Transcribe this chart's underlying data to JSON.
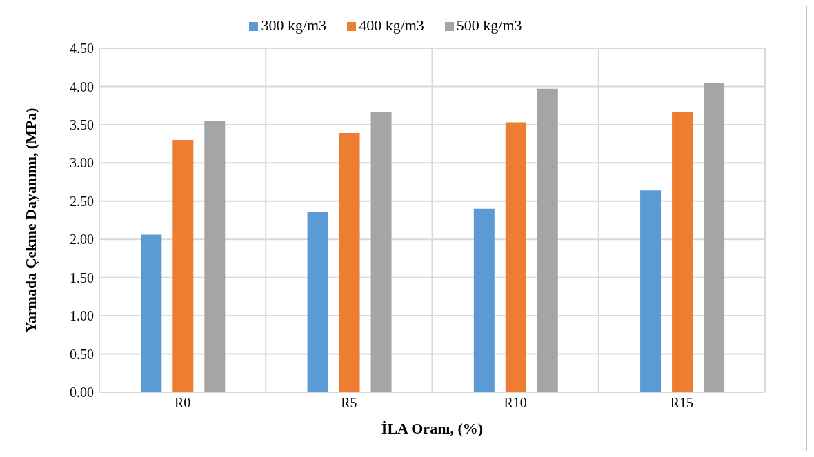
{
  "chart_data": {
    "type": "bar",
    "xlabel": "İLA Oranı, (%)",
    "ylabel": "Yarmada Çekme Dayanımı, (MPa)",
    "categories": [
      "R0",
      "R5",
      "R10",
      "R15"
    ],
    "series": [
      {
        "name": "300 kg/m3",
        "color": "#5b9bd5",
        "values": [
          2.06,
          2.36,
          2.4,
          2.64
        ]
      },
      {
        "name": "400 kg/m3",
        "color": "#ed7d31",
        "values": [
          3.3,
          3.39,
          3.53,
          3.67
        ]
      },
      {
        "name": "500 kg/m3",
        "color": "#a5a5a5",
        "values": [
          3.55,
          3.67,
          3.97,
          4.04
        ]
      }
    ],
    "ylim": [
      0,
      4.5
    ],
    "yticks": [
      {
        "value": 0,
        "label": "0.00"
      },
      {
        "value": 0.5,
        "label": "0.50"
      },
      {
        "value": 1,
        "label": "1.00"
      },
      {
        "value": 1.5,
        "label": "1.50"
      },
      {
        "value": 2,
        "label": "2.00"
      },
      {
        "value": 2.5,
        "label": "2.50"
      },
      {
        "value": 3,
        "label": "3.00"
      },
      {
        "value": 3.5,
        "label": "3.50"
      },
      {
        "value": 4,
        "label": "4.00"
      },
      {
        "value": 4.5,
        "label": "4.50"
      }
    ],
    "grid": true,
    "legend": "top"
  }
}
